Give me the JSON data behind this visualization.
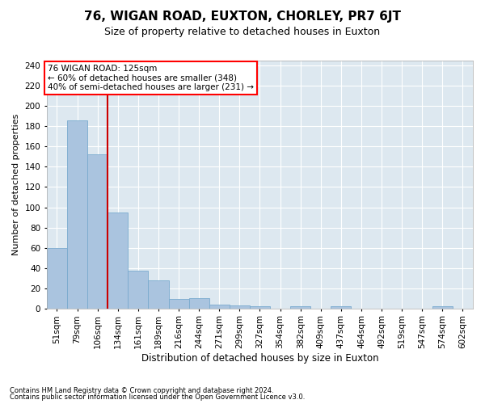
{
  "title": "76, WIGAN ROAD, EUXTON, CHORLEY, PR7 6JT",
  "subtitle": "Size of property relative to detached houses in Euxton",
  "xlabel": "Distribution of detached houses by size in Euxton",
  "ylabel": "Number of detached properties",
  "footnote1": "Contains HM Land Registry data © Crown copyright and database right 2024.",
  "footnote2": "Contains public sector information licensed under the Open Government Licence v3.0.",
  "categories": [
    "51sqm",
    "79sqm",
    "106sqm",
    "134sqm",
    "161sqm",
    "189sqm",
    "216sqm",
    "244sqm",
    "271sqm",
    "299sqm",
    "327sqm",
    "354sqm",
    "382sqm",
    "409sqm",
    "437sqm",
    "464sqm",
    "492sqm",
    "519sqm",
    "547sqm",
    "574sqm",
    "602sqm"
  ],
  "values": [
    60,
    186,
    152,
    95,
    37,
    28,
    9,
    10,
    4,
    3,
    2,
    0,
    2,
    0,
    2,
    0,
    0,
    0,
    0,
    2,
    0
  ],
  "bar_color": "#aac4df",
  "bar_edge_color": "#7aaace",
  "ref_line_x": 2.5,
  "ref_line_color": "#cc0000",
  "annotation_line1": "76 WIGAN ROAD: 125sqm",
  "annotation_line2": "← 60% of detached houses are smaller (348)",
  "annotation_line3": "40% of semi-detached houses are larger (231) →",
  "ylim": [
    0,
    245
  ],
  "yticks": [
    0,
    20,
    40,
    60,
    80,
    100,
    120,
    140,
    160,
    180,
    200,
    220,
    240
  ],
  "background_color": "#dde8f0",
  "grid_color": "#ffffff",
  "title_fontsize": 11,
  "subtitle_fontsize": 9,
  "ylabel_fontsize": 8,
  "xlabel_fontsize": 8.5,
  "tick_fontsize": 7.5,
  "annotation_fontsize": 7.5,
  "footnote_fontsize": 6
}
